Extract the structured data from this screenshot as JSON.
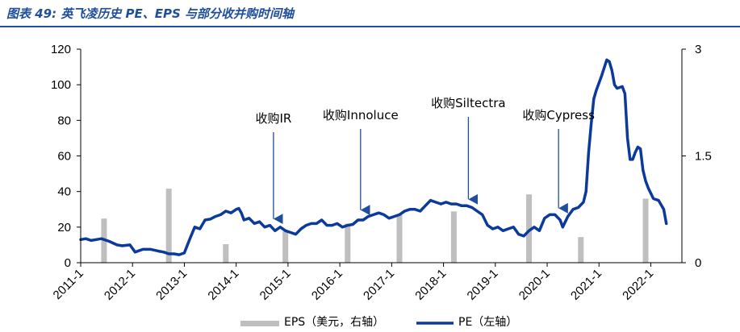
{
  "title": "图表 49: 英飞凌历史 PE、EPS 与部分收并购时间轴",
  "chart_data": {
    "type": "bar+line",
    "left_axis": {
      "ylim": [
        0,
        120
      ],
      "ticks": [
        "0",
        "20",
        "40",
        "60",
        "80",
        "100",
        "120"
      ]
    },
    "right_axis": {
      "ylim": [
        0,
        3
      ],
      "ticks": [
        "0",
        "1.5",
        "3"
      ]
    },
    "x_ticks": [
      "2011-1",
      "2012-1",
      "2013-1",
      "2014-1",
      "2015-1",
      "2016-1",
      "2017-1",
      "2018-1",
      "2019-1",
      "2020-1",
      "2021-1",
      "2022-1"
    ],
    "x_range": [
      2011.0,
      2022.6
    ],
    "grid": false,
    "legend_position": "bottom",
    "series": [
      {
        "name": "EPS（美元，右轴）",
        "type": "bar",
        "axis": "right",
        "color": "#bfbfbf",
        "x": [
          2011.45,
          2012.7,
          2013.8,
          2014.95,
          2016.15,
          2017.15,
          2018.2,
          2019.65,
          2020.65,
          2021.9
        ],
        "values": [
          0.62,
          1.04,
          0.26,
          0.44,
          0.55,
          0.68,
          0.72,
          0.96,
          0.36,
          0.9
        ]
      },
      {
        "name": "PE（左轴）",
        "type": "line",
        "axis": "left",
        "color": "#0b3a9c",
        "points": [
          [
            2011.0,
            13
          ],
          [
            2011.1,
            13.5
          ],
          [
            2011.2,
            12.5
          ],
          [
            2011.3,
            13
          ],
          [
            2011.4,
            13.5
          ],
          [
            2011.55,
            12
          ],
          [
            2011.7,
            10
          ],
          [
            2011.8,
            9.5
          ],
          [
            2011.95,
            10
          ],
          [
            2012.05,
            6
          ],
          [
            2012.2,
            7.5
          ],
          [
            2012.35,
            7.5
          ],
          [
            2012.5,
            6.5
          ],
          [
            2012.6,
            6
          ],
          [
            2012.7,
            5
          ],
          [
            2012.8,
            5
          ],
          [
            2012.9,
            4.5
          ],
          [
            2013.0,
            5.5
          ],
          [
            2013.1,
            13
          ],
          [
            2013.2,
            20
          ],
          [
            2013.3,
            19
          ],
          [
            2013.4,
            24
          ],
          [
            2013.5,
            24.5
          ],
          [
            2013.6,
            26
          ],
          [
            2013.7,
            27
          ],
          [
            2013.8,
            29
          ],
          [
            2013.9,
            28
          ],
          [
            2014.0,
            30
          ],
          [
            2014.05,
            30.5
          ],
          [
            2014.1,
            28
          ],
          [
            2014.15,
            24
          ],
          [
            2014.25,
            25
          ],
          [
            2014.35,
            22
          ],
          [
            2014.45,
            23
          ],
          [
            2014.55,
            20
          ],
          [
            2014.65,
            21
          ],
          [
            2014.75,
            18
          ],
          [
            2014.85,
            20
          ],
          [
            2014.95,
            18
          ],
          [
            2015.05,
            17
          ],
          [
            2015.15,
            16
          ],
          [
            2015.25,
            19
          ],
          [
            2015.35,
            21
          ],
          [
            2015.45,
            22
          ],
          [
            2015.55,
            22
          ],
          [
            2015.65,
            24
          ],
          [
            2015.75,
            21
          ],
          [
            2015.85,
            21
          ],
          [
            2015.95,
            22
          ],
          [
            2016.05,
            20
          ],
          [
            2016.15,
            21
          ],
          [
            2016.25,
            21.5
          ],
          [
            2016.35,
            24
          ],
          [
            2016.45,
            24
          ],
          [
            2016.55,
            26
          ],
          [
            2016.65,
            27
          ],
          [
            2016.75,
            28
          ],
          [
            2016.85,
            27
          ],
          [
            2016.95,
            25
          ],
          [
            2017.05,
            26
          ],
          [
            2017.15,
            27
          ],
          [
            2017.25,
            29
          ],
          [
            2017.35,
            30
          ],
          [
            2017.45,
            30
          ],
          [
            2017.55,
            29
          ],
          [
            2017.65,
            32
          ],
          [
            2017.75,
            35
          ],
          [
            2017.85,
            34
          ],
          [
            2017.95,
            33
          ],
          [
            2018.05,
            34
          ],
          [
            2018.15,
            33
          ],
          [
            2018.25,
            33
          ],
          [
            2018.35,
            32
          ],
          [
            2018.45,
            32
          ],
          [
            2018.55,
            31
          ],
          [
            2018.65,
            29
          ],
          [
            2018.75,
            27
          ],
          [
            2018.85,
            21
          ],
          [
            2018.95,
            19
          ],
          [
            2019.05,
            20
          ],
          [
            2019.15,
            18
          ],
          [
            2019.25,
            19
          ],
          [
            2019.35,
            20
          ],
          [
            2019.45,
            16
          ],
          [
            2019.55,
            15
          ],
          [
            2019.65,
            18
          ],
          [
            2019.75,
            20
          ],
          [
            2019.85,
            18
          ],
          [
            2019.95,
            25
          ],
          [
            2020.05,
            27
          ],
          [
            2020.15,
            27
          ],
          [
            2020.25,
            24
          ],
          [
            2020.3,
            20
          ],
          [
            2020.4,
            26
          ],
          [
            2020.5,
            30
          ],
          [
            2020.6,
            31
          ],
          [
            2020.7,
            34
          ],
          [
            2020.75,
            40
          ],
          [
            2020.8,
            62
          ],
          [
            2020.85,
            78
          ],
          [
            2020.9,
            92
          ],
          [
            2020.95,
            97
          ],
          [
            2021.05,
            105
          ],
          [
            2021.15,
            114
          ],
          [
            2021.2,
            113
          ],
          [
            2021.25,
            108
          ],
          [
            2021.3,
            100
          ],
          [
            2021.35,
            98
          ],
          [
            2021.45,
            99
          ],
          [
            2021.5,
            95
          ],
          [
            2021.55,
            70
          ],
          [
            2021.6,
            58
          ],
          [
            2021.65,
            58
          ],
          [
            2021.7,
            62
          ],
          [
            2021.75,
            65
          ],
          [
            2021.8,
            64
          ],
          [
            2021.85,
            52
          ],
          [
            2021.9,
            46
          ],
          [
            2021.95,
            42
          ],
          [
            2022.05,
            36
          ],
          [
            2022.15,
            35
          ],
          [
            2022.25,
            30
          ],
          [
            2022.3,
            22
          ]
        ]
      }
    ],
    "annotations": [
      {
        "label": "收购IR",
        "x": 2014.72,
        "y": 21
      },
      {
        "label": "收购Innoluce",
        "x": 2016.4,
        "y": 26
      },
      {
        "label": "收购Siltectra",
        "x": 2018.48,
        "y": 32
      },
      {
        "label": "收购Cypress",
        "x": 2020.22,
        "y": 27
      }
    ],
    "legend": [
      "EPS（美元，右轴）",
      "PE（左轴）"
    ]
  }
}
